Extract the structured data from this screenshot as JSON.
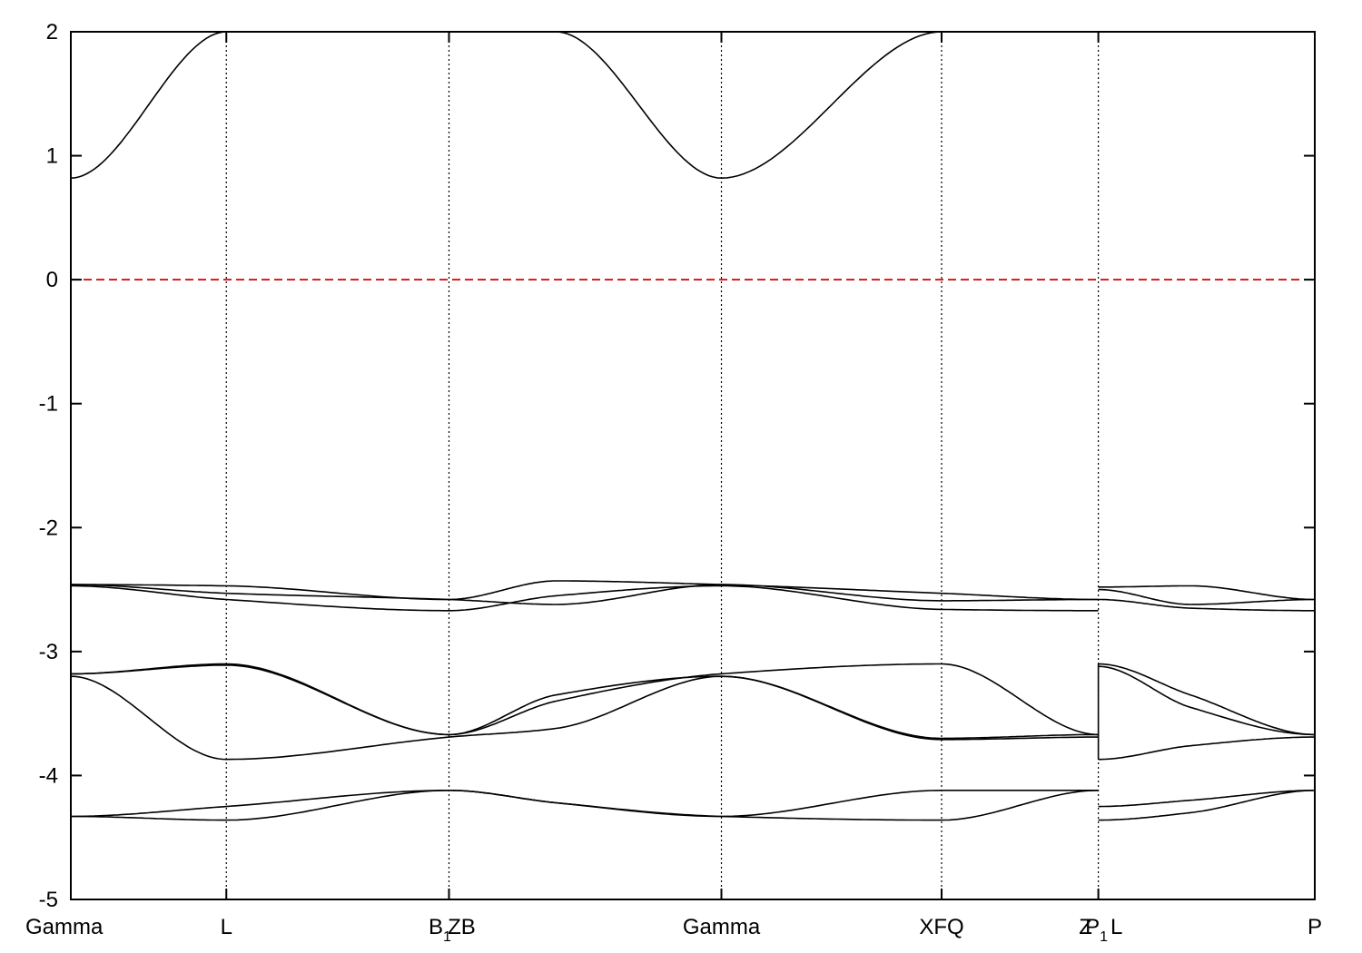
{
  "chart_data": {
    "type": "line",
    "title": "",
    "xlabel": "",
    "ylabel": "",
    "ylim": [
      -5,
      2
    ],
    "yticks": [
      -5,
      -4,
      -3,
      -2,
      -1,
      0,
      1,
      2
    ],
    "grid": "vertical dotted lines at high-symmetry points",
    "fermi_level": 0,
    "fermi_color": "#d00000",
    "band_color": "#000000",
    "kpoints": [
      {
        "pos": 0.0,
        "label": "Gamma"
      },
      {
        "pos": 0.125,
        "label": "L"
      },
      {
        "pos": 0.304,
        "label": "B",
        "sub": "1"
      },
      {
        "pos": 0.304,
        "label": "ZB"
      },
      {
        "pos": 0.523,
        "label": "Gamma"
      },
      {
        "pos": 0.7,
        "label": "XFQ"
      },
      {
        "pos": 0.826,
        "label": "Z"
      },
      {
        "pos": 0.826,
        "label": "P",
        "sub": "1"
      },
      {
        "pos": 0.826,
        "label": "L"
      },
      {
        "pos": 1.0,
        "label": "P"
      }
    ],
    "band_x": [
      0.0,
      0.125,
      0.304,
      0.39,
      0.523,
      0.7,
      0.826
    ],
    "bands_left": [
      [
        0.82,
        2.0,
        2.0,
        2.0,
        0.82,
        2.0,
        2.0
      ],
      [
        -4.33,
        -4.25,
        -4.12,
        -4.22,
        -4.33,
        -4.12,
        -4.12
      ],
      [
        -4.33,
        -4.36,
        -4.12,
        -4.22,
        -4.33,
        -4.36,
        -4.12
      ],
      [
        -3.18,
        -3.1,
        -3.67,
        -3.4,
        -3.18,
        -3.1,
        -3.67
      ],
      [
        -3.18,
        -3.11,
        -3.67,
        -3.35,
        -3.2,
        -3.7,
        -3.67
      ],
      [
        -3.2,
        -3.87,
        -3.69,
        -3.62,
        -3.2,
        -3.71,
        -3.69
      ],
      [
        -2.46,
        -2.47,
        -2.58,
        -2.43,
        -2.46,
        -2.53,
        -2.58
      ],
      [
        -2.46,
        -2.53,
        -2.58,
        -2.62,
        -2.46,
        -2.59,
        -2.58
      ],
      [
        -2.47,
        -2.58,
        -2.67,
        -2.55,
        -2.47,
        -2.66,
        -2.67
      ]
    ],
    "band_x_right": [
      0.826,
      0.9,
      1.0
    ],
    "bands_right": [
      [
        -4.25,
        -4.2,
        -4.12
      ],
      [
        -4.36,
        -4.3,
        -4.12
      ],
      [
        -3.1,
        -3.35,
        -3.67
      ],
      [
        -3.12,
        -3.45,
        -3.67
      ],
      [
        -3.87,
        -3.76,
        -3.69
      ],
      [
        -2.48,
        -2.47,
        -2.58
      ],
      [
        -2.5,
        -2.62,
        -2.58
      ],
      [
        -2.58,
        -2.65,
        -2.67
      ]
    ]
  }
}
